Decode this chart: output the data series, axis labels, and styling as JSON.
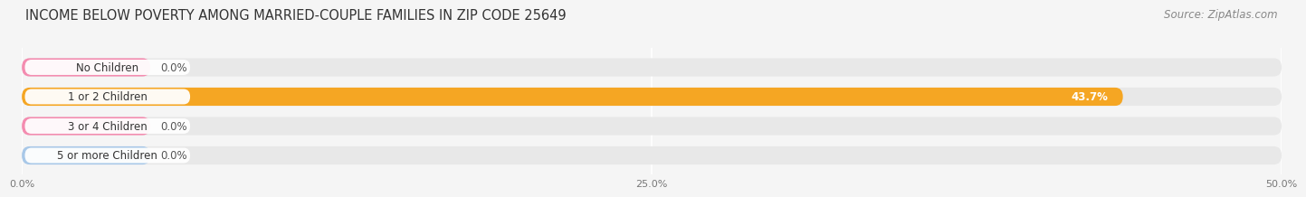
{
  "title": "INCOME BELOW POVERTY AMONG MARRIED-COUPLE FAMILIES IN ZIP CODE 25649",
  "source": "Source: ZipAtlas.com",
  "categories": [
    "No Children",
    "1 or 2 Children",
    "3 or 4 Children",
    "5 or more Children"
  ],
  "values": [
    0.0,
    43.7,
    0.0,
    0.0
  ],
  "bar_colors": [
    "#f48cb0",
    "#f5a623",
    "#f48cb0",
    "#a8c8e8"
  ],
  "bar_bg_color": "#e8e8e8",
  "background_color": "#f5f5f5",
  "xlim_max": 50,
  "xticks": [
    0,
    25,
    50
  ],
  "xticklabels": [
    "0.0%",
    "25.0%",
    "50.0%"
  ],
  "title_fontsize": 10.5,
  "source_fontsize": 8.5,
  "category_fontsize": 8.5,
  "value_label_fontsize": 8.5,
  "tick_fontsize": 8
}
